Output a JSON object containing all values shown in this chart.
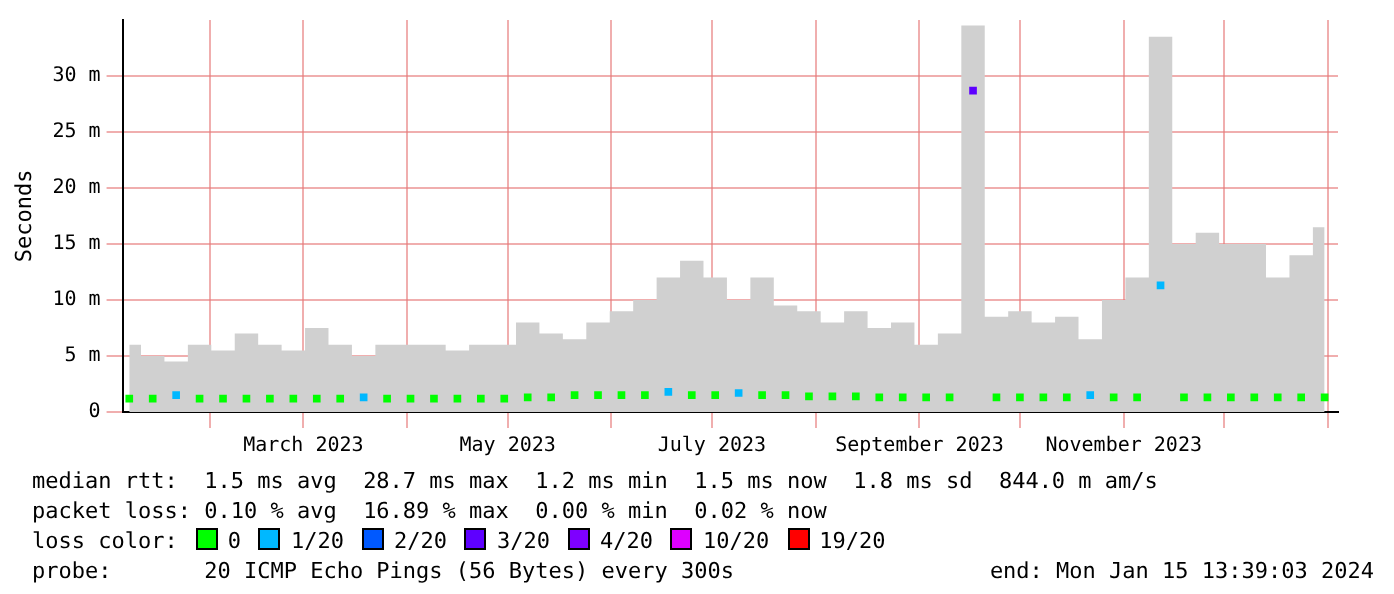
{
  "chart_data": {
    "type": "scatter",
    "ylabel": "Seconds",
    "legend_title": "loss color:",
    "legend": "bottom",
    "grid": true,
    "x": [
      "2023-01-08",
      "2023-01-15",
      "2023-01-22",
      "2023-01-29",
      "2023-02-05",
      "2023-02-12",
      "2023-02-19",
      "2023-02-26",
      "2023-03-05",
      "2023-03-12",
      "2023-03-19",
      "2023-03-26",
      "2023-04-02",
      "2023-04-09",
      "2023-04-16",
      "2023-04-23",
      "2023-04-30",
      "2023-05-07",
      "2023-05-14",
      "2023-05-21",
      "2023-05-28",
      "2023-06-04",
      "2023-06-11",
      "2023-06-18",
      "2023-06-25",
      "2023-07-02",
      "2023-07-09",
      "2023-07-16",
      "2023-07-23",
      "2023-07-30",
      "2023-08-06",
      "2023-08-13",
      "2023-08-20",
      "2023-08-27",
      "2023-09-03",
      "2023-09-10",
      "2023-09-17",
      "2023-09-24",
      "2023-10-01",
      "2023-10-08",
      "2023-10-15",
      "2023-10-22",
      "2023-10-29",
      "2023-11-05",
      "2023-11-12",
      "2023-11-19",
      "2023-11-26",
      "2023-12-03",
      "2023-12-10",
      "2023-12-17",
      "2023-12-24",
      "2023-12-31"
    ],
    "xlim": [
      "2023-01-06",
      "2024-01-04"
    ],
    "xticks": [
      {
        "value": "2023-02-01",
        "label": null
      },
      {
        "value": "2023-03-01",
        "label": "March 2023"
      },
      {
        "value": "2023-04-01",
        "label": null
      },
      {
        "value": "2023-05-01",
        "label": "May 2023"
      },
      {
        "value": "2023-06-01",
        "label": null
      },
      {
        "value": "2023-07-01",
        "label": "July 2023"
      },
      {
        "value": "2023-08-01",
        "label": null
      },
      {
        "value": "2023-09-01",
        "label": "September 2023"
      },
      {
        "value": "2023-10-01",
        "label": null
      },
      {
        "value": "2023-11-01",
        "label": "November 2023"
      },
      {
        "value": "2023-12-01",
        "label": null
      },
      {
        "value": "2024-01-01",
        "label": null
      }
    ],
    "ylim": [
      0,
      35
    ],
    "yticks": [
      0,
      {
        "value": 5,
        "label": "5 m"
      },
      {
        "value": 10,
        "label": "10 m"
      },
      {
        "value": 15,
        "label": "15 m"
      },
      {
        "value": 20,
        "label": "20 m"
      },
      {
        "value": 25,
        "label": "25 m"
      },
      {
        "value": 30,
        "label": "30 m"
      }
    ],
    "series": [
      {
        "type": "area",
        "color": "#d0d0d0",
        "values": [
          6,
          5,
          4.5,
          6,
          5.5,
          7,
          6,
          5.5,
          7.5,
          6,
          5,
          6,
          6,
          6,
          5.5,
          6,
          6,
          8,
          7,
          6.5,
          8,
          9,
          10,
          12,
          13.5,
          12,
          10,
          12,
          9.5,
          9,
          8,
          9,
          7.5,
          8,
          6,
          7,
          34.5,
          8.5,
          9,
          8,
          8.5,
          6.5,
          10,
          12,
          33.5,
          15,
          16,
          15,
          15,
          12,
          14,
          16.5
        ]
      },
      {
        "name": "0",
        "color": "#00ff00",
        "marker": "square",
        "values": [
          1.2,
          1.2,
          null,
          1.2,
          1.2,
          1.2,
          1.2,
          1.2,
          1.2,
          1.2,
          null,
          1.2,
          1.2,
          1.2,
          1.2,
          1.2,
          1.2,
          1.3,
          1.3,
          1.5,
          1.5,
          1.5,
          1.5,
          null,
          1.5,
          1.5,
          null,
          1.5,
          1.5,
          1.4,
          1.4,
          1.4,
          1.3,
          1.3,
          1.3,
          1.3,
          null,
          1.3,
          1.3,
          1.3,
          1.3,
          null,
          1.3,
          1.3,
          null,
          1.3,
          1.3,
          1.3,
          1.3,
          1.3,
          1.3,
          1.3
        ]
      },
      {
        "name": "1/20",
        "color": "#00b8ff",
        "marker": "square",
        "x": [
          "2023-01-22",
          "2023-03-19",
          "2023-06-18",
          "2023-07-09",
          "2023-10-22",
          "2023-11-12"
        ],
        "values": [
          1.5,
          1.3,
          1.8,
          1.7,
          1.5,
          11.3
        ]
      },
      {
        "name": "2/20",
        "color": "#0059ff",
        "marker": "square",
        "values": [
          null,
          null,
          null,
          null,
          null,
          null,
          null,
          null,
          null,
          null,
          null,
          null,
          null,
          null,
          null,
          null,
          null,
          null,
          null,
          null,
          null,
          null,
          null,
          null,
          null,
          null,
          null,
          null,
          null,
          null,
          null,
          null,
          null,
          null,
          null,
          null,
          null,
          null,
          null,
          null,
          null,
          null,
          null,
          null,
          null,
          null,
          null,
          null,
          null,
          null,
          null,
          null
        ]
      },
      {
        "name": "3/20",
        "color": "#5e00ff",
        "marker": "square",
        "x": [
          "2023-09-17"
        ],
        "values": [
          28.7
        ]
      },
      {
        "name": "4/20",
        "color": "#7e00ff",
        "marker": "square",
        "values": [
          null,
          null,
          null,
          null,
          null,
          null,
          null,
          null,
          null,
          null,
          null,
          null,
          null,
          null,
          null,
          null,
          null,
          null,
          null,
          null,
          null,
          null,
          null,
          null,
          null,
          null,
          null,
          null,
          null,
          null,
          null,
          null,
          null,
          null,
          null,
          null,
          null,
          null,
          null,
          null,
          null,
          null,
          null,
          null,
          null,
          null,
          null,
          null,
          null,
          null,
          null,
          null
        ]
      },
      {
        "name": "10/20",
        "color": "#dd00ff",
        "marker": "square",
        "values": [
          null,
          null,
          null,
          null,
          null,
          null,
          null,
          null,
          null,
          null,
          null,
          null,
          null,
          null,
          null,
          null,
          null,
          null,
          null,
          null,
          null,
          null,
          null,
          null,
          null,
          null,
          null,
          null,
          null,
          null,
          null,
          null,
          null,
          null,
          null,
          null,
          null,
          null,
          null,
          null,
          null,
          null,
          null,
          null,
          null,
          null,
          null,
          null,
          null,
          null,
          null,
          null
        ]
      },
      {
        "name": "19/20",
        "color": "#ff0000",
        "marker": "square",
        "values": [
          null,
          null,
          null,
          null,
          null,
          null,
          null,
          null,
          null,
          null,
          null,
          null,
          null,
          null,
          null,
          null,
          null,
          null,
          null,
          null,
          null,
          null,
          null,
          null,
          null,
          null,
          null,
          null,
          null,
          null,
          null,
          null,
          null,
          null,
          null,
          null,
          null,
          null,
          null,
          null,
          null,
          null,
          null,
          null,
          null,
          null,
          null,
          null,
          null,
          null,
          null,
          null
        ]
      }
    ],
    "annotations": [
      "median rtt:  1.5 ms avg  28.7 ms max  1.2 ms min  1.5 ms now  1.8 ms sd  844.0 m am/s",
      "packet loss: 0.10 % avg  16.89 % max  0.00 % min  0.02 % now",
      "probe:       20 ICMP Echo Pings (56 Bytes) every 300s",
      "end: Mon Jan 15 13:39:03 2024"
    ]
  }
}
